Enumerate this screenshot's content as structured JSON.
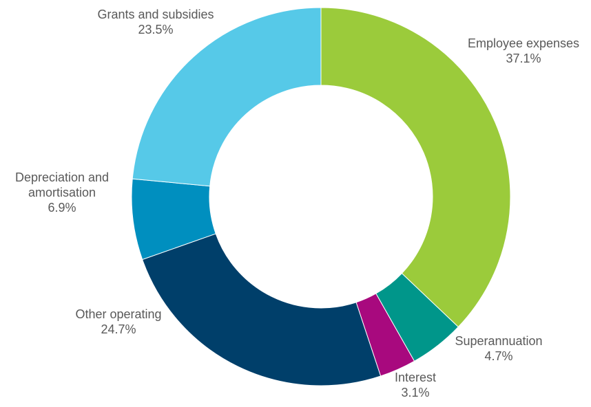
{
  "chart_data": {
    "type": "pie",
    "variant": "donut",
    "title": "",
    "legend": "none",
    "series": [
      {
        "values": [
          37.1,
          4.7,
          3.1,
          24.7,
          6.9,
          23.5
        ]
      }
    ],
    "slices": [
      {
        "label": "Employee expenses",
        "value": 37.1,
        "value_label": "37.1%",
        "color": "#9BCB3B"
      },
      {
        "label": "Superannuation",
        "value": 4.7,
        "value_label": "4.7%",
        "color": "#00968A"
      },
      {
        "label": "Interest",
        "value": 3.1,
        "value_label": "3.1%",
        "color": "#A8097E"
      },
      {
        "label": "Other operating",
        "value": 24.7,
        "value_label": "24.7%",
        "color": "#003F6A"
      },
      {
        "label": "Depreciation and amortisation",
        "value": 6.9,
        "value_label": "6.9%",
        "color": "#008FBF"
      },
      {
        "label": "Grants and subsidies",
        "value": 23.5,
        "value_label": "23.5%",
        "color": "#56C9E8"
      }
    ]
  }
}
